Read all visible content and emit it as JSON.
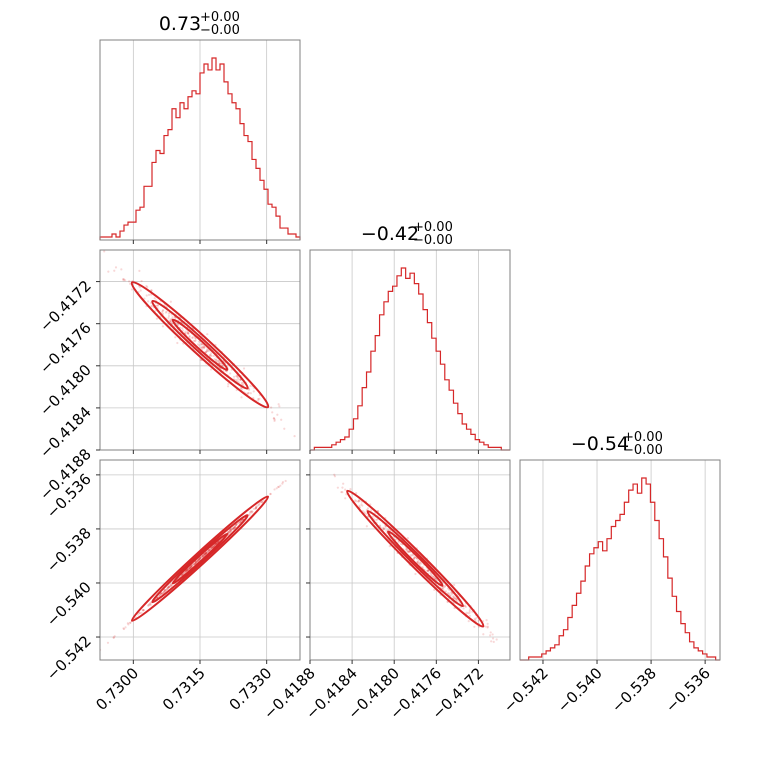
{
  "chart_data": {
    "type": "corner",
    "color": "#d62728",
    "parameters": [
      {
        "title_value": "0.73",
        "title_upper": "+0.00",
        "title_lower": "−0.00",
        "range": [
          0.72925,
          0.73375
        ],
        "ticks": [
          0.73,
          0.7315,
          0.733
        ],
        "tick_labels": [
          "0.7300",
          "0.7315",
          "0.7330"
        ],
        "hist": {
          "bins": [
            0.72925,
            0.73375
          ],
          "counts": [
            1,
            1,
            1,
            2,
            1,
            3,
            5,
            6,
            6,
            10,
            11,
            18,
            18,
            26,
            30,
            29,
            35,
            37,
            44,
            41,
            46,
            44,
            48,
            50,
            49,
            56,
            59,
            57,
            61,
            57,
            59,
            53,
            49,
            46,
            44,
            39,
            35,
            33,
            27,
            24,
            20,
            17,
            12,
            11,
            8,
            4,
            4,
            2,
            2,
            1
          ]
        }
      },
      {
        "title_value": "−0.42",
        "title_upper": "+0.00",
        "title_lower": "−0.00",
        "range": [
          -0.4188,
          -0.4169
        ],
        "ticks": [
          -0.4188,
          -0.4184,
          -0.418,
          -0.4176,
          -0.4172
        ],
        "tick_labels": [
          "−0.4188",
          "−0.4184",
          "−0.4180",
          "−0.4176",
          "−0.4172"
        ],
        "hist": {
          "bins": [
            -0.4188,
            -0.4169
          ],
          "counts": [
            0,
            1,
            1,
            1,
            1,
            2,
            3,
            4,
            5,
            8,
            12,
            17,
            24,
            30,
            38,
            44,
            52,
            57,
            61,
            63,
            67,
            70,
            66,
            68,
            64,
            60,
            54,
            49,
            43,
            38,
            33,
            27,
            23,
            18,
            14,
            10,
            8,
            6,
            4,
            3,
            2,
            1,
            1,
            1,
            0,
            0
          ]
        }
      },
      {
        "title_value": "−0.54",
        "title_upper": "+0.00",
        "title_lower": "−0.00",
        "range": [
          -0.54285,
          -0.53545
        ],
        "ticks": [
          -0.542,
          -0.54,
          -0.538,
          -0.536
        ],
        "tick_labels": [
          "−0.542",
          "−0.540",
          "−0.538",
          "−0.536"
        ],
        "hist": {
          "bins": [
            -0.54285,
            -0.53545
          ],
          "counts": [
            0,
            0,
            1,
            1,
            1,
            2,
            3,
            4,
            5,
            8,
            10,
            14,
            18,
            22,
            26,
            31,
            35,
            37,
            39,
            36,
            40,
            44,
            46,
            48,
            52,
            56,
            58,
            55,
            60,
            58,
            52,
            46,
            40,
            34,
            27,
            21,
            16,
            12,
            9,
            6,
            4,
            3,
            2,
            1,
            1,
            0
          ]
        }
      }
    ],
    "pairs": [
      {
        "x_param": 0,
        "y_param": 1,
        "mean": [
          0.7315,
          -0.4178
        ],
        "slope": -0.3867,
        "spread": 6e-05,
        "n_points": 420,
        "seed": 11
      },
      {
        "x_param": 0,
        "y_param": 2,
        "mean": [
          0.7315,
          -0.5391
        ],
        "slope": 1.5,
        "spread": 3e-05,
        "n_points": 420,
        "seed": 23
      },
      {
        "x_param": 1,
        "y_param": 2,
        "mean": [
          -0.4178,
          -0.5391
        ],
        "slope": -3.88,
        "spread": 0.0002,
        "n_points": 420,
        "seed": 37
      }
    ],
    "grid": true
  }
}
